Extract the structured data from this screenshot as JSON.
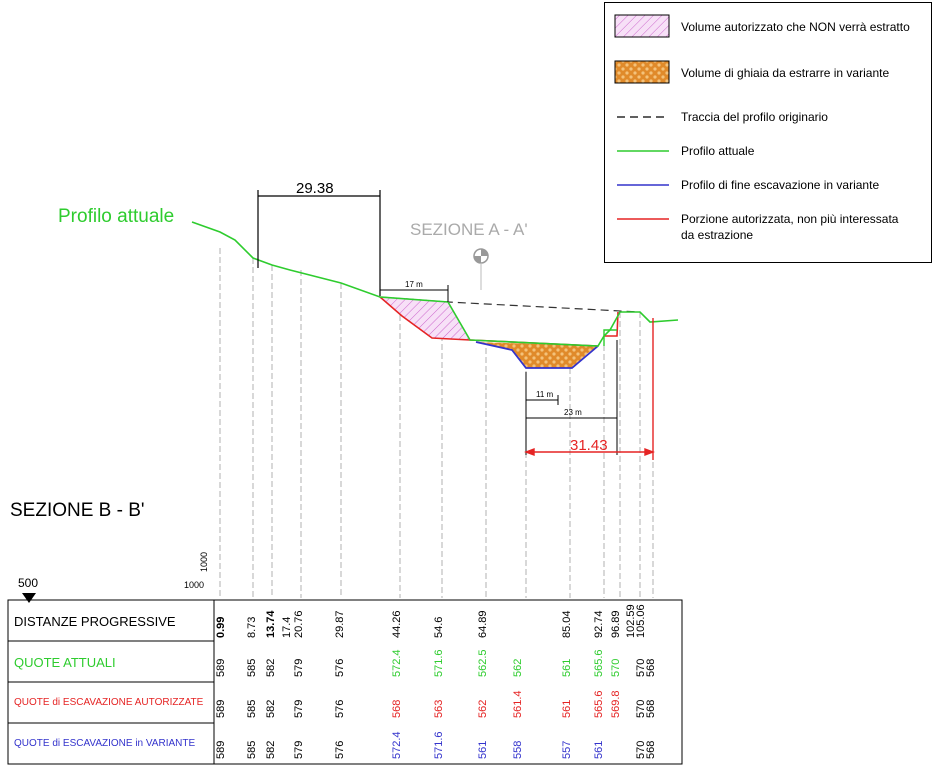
{
  "legend": {
    "items": [
      {
        "label": "Volume autorizzato che NON verrà estratto",
        "symbol": "hatch-pink"
      },
      {
        "label": "Volume di ghiaia da estrarre in variante",
        "symbol": "gravel-orange"
      },
      {
        "label": "Traccia del profilo originario",
        "symbol": "dashed-black"
      },
      {
        "label": "Profilo attuale",
        "symbol": "line-green"
      },
      {
        "label": "Profilo di fine escavazione in variante",
        "symbol": "line-blue"
      },
      {
        "label": "Porzione autorizzata, non più interessata\nda estrazione",
        "symbol": "line-red"
      }
    ]
  },
  "labels": {
    "profilo_attuale": "Profilo attuale",
    "sezione_aa": "SEZIONE A - A'",
    "sezione_bb": "SEZIONE B - B'",
    "scale_top": "500",
    "scale_h": "1000",
    "scale_v": "1000",
    "dim_29": "29.38",
    "dim_17": "17 m",
    "dim_11": "11 m",
    "dim_23": "23 m",
    "dim_31": "31.43"
  },
  "colors": {
    "green": "#2ecc2e",
    "red": "#e52424",
    "blue": "#3333cc",
    "black": "#000000",
    "gray": "#b0b0b0",
    "hatch": "#cc66cc",
    "gravel": "#e08a2a"
  },
  "table": {
    "rows": [
      {
        "label": "DISTANZE PROGRESSIVE",
        "color": "#000000"
      },
      {
        "label": "QUOTE ATTUALI",
        "color": "#2ecc2e"
      },
      {
        "label": "QUOTE di ESCAVAZIONE AUTORIZZATE",
        "color": "#e52424"
      },
      {
        "label": "QUOTE di ESCAVAZIONE in VARIANTE",
        "color": "#3333cc"
      }
    ],
    "distances": [
      "0.99",
      "8.73",
      "13.74",
      "17.4",
      "20.76",
      "29.87",
      "44.26",
      "54.6",
      "64.89",
      "",
      "85.04",
      "92.74",
      "96.89",
      "102.59",
      "105.06"
    ],
    "quote_attuali": [
      {
        "v": "589",
        "c": "#000000"
      },
      {
        "v": "585",
        "c": "#000000"
      },
      {
        "v": "582",
        "c": "#000000"
      },
      {
        "v": "579",
        "c": "#000000"
      },
      {
        "v": "576",
        "c": "#000000"
      },
      {
        "v": "572.4",
        "c": "#2ecc2e"
      },
      {
        "v": "571.6",
        "c": "#2ecc2e"
      },
      {
        "v": "562.5",
        "c": "#2ecc2e"
      },
      {
        "v": "562",
        "c": "#2ecc2e"
      },
      {
        "v": "561",
        "c": "#2ecc2e"
      },
      {
        "v": "565.6",
        "c": "#2ecc2e"
      },
      {
        "v": "570",
        "c": "#2ecc2e"
      },
      {
        "v": "570",
        "c": "#000000"
      },
      {
        "v": "568",
        "c": "#000000"
      }
    ],
    "quote_autorizzate": [
      {
        "v": "589",
        "c": "#000000"
      },
      {
        "v": "585",
        "c": "#000000"
      },
      {
        "v": "582",
        "c": "#000000"
      },
      {
        "v": "579",
        "c": "#000000"
      },
      {
        "v": "576",
        "c": "#000000"
      },
      {
        "v": "568",
        "c": "#e52424"
      },
      {
        "v": "563",
        "c": "#e52424"
      },
      {
        "v": "562",
        "c": "#e52424"
      },
      {
        "v": "561.4",
        "c": "#e52424"
      },
      {
        "v": "561",
        "c": "#e52424"
      },
      {
        "v": "565.6",
        "c": "#e52424"
      },
      {
        "v": "569.8",
        "c": "#e52424"
      },
      {
        "v": "570",
        "c": "#000000"
      },
      {
        "v": "568",
        "c": "#000000"
      }
    ],
    "quote_variante": [
      {
        "v": "589",
        "c": "#000000"
      },
      {
        "v": "585",
        "c": "#000000"
      },
      {
        "v": "582",
        "c": "#000000"
      },
      {
        "v": "579",
        "c": "#000000"
      },
      {
        "v": "576",
        "c": "#000000"
      },
      {
        "v": "572.4",
        "c": "#3333cc"
      },
      {
        "v": "571.6",
        "c": "#3333cc"
      },
      {
        "v": "561",
        "c": "#3333cc"
      },
      {
        "v": "558",
        "c": "#3333cc"
      },
      {
        "v": "557",
        "c": "#3333cc"
      },
      {
        "v": "561",
        "c": "#3333cc"
      },
      {
        "v": "570",
        "c": "#000000"
      },
      {
        "v": "568",
        "c": "#000000"
      }
    ]
  }
}
